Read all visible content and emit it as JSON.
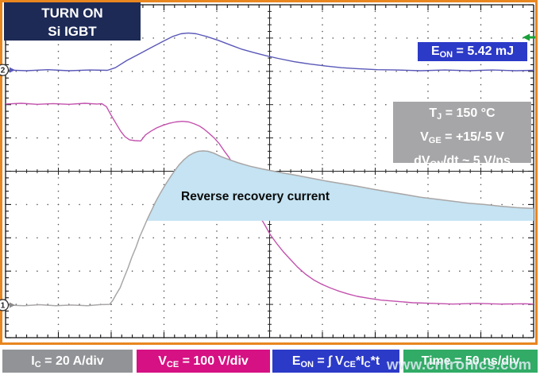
{
  "colors": {
    "navy": "#1d2a56",
    "royal_blue": "#2c3ac8",
    "magenta_box": "#d61183",
    "gray_box": "#919396",
    "cond_gray": "#a6a6a8",
    "green_box": "#31ab66",
    "orange_frame": "#e8861f",
    "shade_blue": "#c5e3f2",
    "eon_trace": "#5a58b8",
    "vce_trace": "#c352ae",
    "ic_trace": "#a9a6a6",
    "trigger_green": "#18a038"
  },
  "title_box": {
    "line1": "TURN ON",
    "line2": "Si IGBT"
  },
  "eon_badge": [
    {
      "t": "E"
    },
    {
      "s": "ON"
    },
    {
      "t": " = 5.42 mJ"
    }
  ],
  "conditions": {
    "line1": [
      {
        "t": "T"
      },
      {
        "s": "J"
      },
      {
        "t": " = 150 °C"
      }
    ],
    "line2": [
      {
        "t": "V"
      },
      {
        "s": "GE"
      },
      {
        "t": " = +15/-5 V"
      }
    ],
    "line3": [
      {
        "t": "dV"
      },
      {
        "s": "ON"
      },
      {
        "t": "/dt ~ 5 V/ns"
      }
    ]
  },
  "legend": {
    "ic": [
      {
        "t": "I"
      },
      {
        "s": "C"
      },
      {
        "t": " = 20 A/div"
      }
    ],
    "vce": [
      {
        "t": "V"
      },
      {
        "s": "CE"
      },
      {
        "t": " = 100 V/div"
      }
    ],
    "eon": [
      {
        "t": "E"
      },
      {
        "s": "ON"
      },
      {
        "t": " = ∫ V"
      },
      {
        "s": "CE"
      },
      {
        "t": "*I"
      },
      {
        "s": "C"
      },
      {
        "t": "*t"
      }
    ],
    "time": [
      {
        "t": "Time = 50 ns/div"
      }
    ]
  },
  "watermark": "www.cntronics.com",
  "chart_data": {
    "type": "line",
    "title": "TURN ON Si IGBT",
    "annotations": [
      "E_ON = 5.42 mJ",
      "T_J = 150 °C",
      "V_GE = +15/-5 V",
      "dV_ON/dt ~ 5 V/ns",
      "Reverse recovery current"
    ],
    "grid": {
      "x_divisions": 10,
      "y_divisions": 10,
      "style": "oscilloscope dotted graticule with ticked center axes and edge rulers"
    },
    "x_axis": {
      "scale_label": "Time = 50 ns/div",
      "range_div": [
        0,
        10
      ]
    },
    "y_axis": {
      "range_div": [
        0,
        10
      ],
      "note": "y in graticule divisions from top"
    },
    "channel_markers": [
      {
        "channel": "2",
        "y_div": 1.96
      },
      {
        "channel": "1",
        "y_div": 9.02
      }
    ],
    "trigger_marker": {
      "y_div": 0.98,
      "edge": "right"
    },
    "series": [
      {
        "name": "E_ON (CH2 math, ∫ V_CE*I_C*t)",
        "scale_label": "E_ON = 5.42 mJ total",
        "color_key": "eon_trace",
        "points": [
          [
            0,
            1.96
          ],
          [
            0.4,
            1.98
          ],
          [
            0.8,
            1.95
          ],
          [
            1.2,
            1.98
          ],
          [
            1.6,
            1.96
          ],
          [
            1.93,
            1.97
          ],
          [
            2.08,
            1.89
          ],
          [
            2.3,
            1.67
          ],
          [
            2.53,
            1.48
          ],
          [
            2.75,
            1.29
          ],
          [
            2.98,
            1.1
          ],
          [
            3.17,
            0.95
          ],
          [
            3.32,
            0.87
          ],
          [
            3.46,
            0.85
          ],
          [
            3.61,
            0.87
          ],
          [
            3.8,
            0.95
          ],
          [
            4.03,
            1.07
          ],
          [
            4.26,
            1.21
          ],
          [
            4.48,
            1.34
          ],
          [
            4.71,
            1.44
          ],
          [
            4.93,
            1.53
          ],
          [
            5.16,
            1.61
          ],
          [
            5.46,
            1.71
          ],
          [
            5.76,
            1.78
          ],
          [
            6.06,
            1.84
          ],
          [
            6.36,
            1.89
          ],
          [
            6.66,
            1.92
          ],
          [
            7.04,
            1.95
          ],
          [
            7.41,
            1.96
          ],
          [
            7.86,
            1.98
          ],
          [
            8.32,
            1.96
          ],
          [
            8.77,
            1.98
          ],
          [
            9.22,
            1.96
          ],
          [
            9.67,
            1.98
          ],
          [
            10,
            1.97
          ]
        ]
      },
      {
        "name": "V_CE",
        "scale_label": "100 V/div",
        "color_key": "vce_trace",
        "points": [
          [
            0,
            2.98
          ],
          [
            0.3,
            2.96
          ],
          [
            0.6,
            2.99
          ],
          [
            0.9,
            2.97
          ],
          [
            1.2,
            2.99
          ],
          [
            1.5,
            2.96
          ],
          [
            1.73,
            2.98
          ],
          [
            1.82,
            2.97
          ],
          [
            1.91,
            3.06
          ],
          [
            2.0,
            3.32
          ],
          [
            2.09,
            3.56
          ],
          [
            2.18,
            3.8
          ],
          [
            2.26,
            3.96
          ],
          [
            2.35,
            4.06
          ],
          [
            2.45,
            4.08
          ],
          [
            2.56,
            4.09
          ],
          [
            2.65,
            3.91
          ],
          [
            2.75,
            3.8
          ],
          [
            2.86,
            3.7
          ],
          [
            2.98,
            3.62
          ],
          [
            3.1,
            3.56
          ],
          [
            3.22,
            3.52
          ],
          [
            3.35,
            3.5
          ],
          [
            3.47,
            3.52
          ],
          [
            3.58,
            3.58
          ],
          [
            3.68,
            3.65
          ],
          [
            3.77,
            3.75
          ],
          [
            3.86,
            3.87
          ],
          [
            3.95,
            4.0
          ],
          [
            4.05,
            4.18
          ],
          [
            4.14,
            4.39
          ],
          [
            4.23,
            4.58
          ],
          [
            4.33,
            4.87
          ],
          [
            4.44,
            5.2
          ],
          [
            4.56,
            5.58
          ],
          [
            4.68,
            5.97
          ],
          [
            4.78,
            6.28
          ],
          [
            4.89,
            6.56
          ],
          [
            5.01,
            6.9
          ],
          [
            5.13,
            7.16
          ],
          [
            5.26,
            7.42
          ],
          [
            5.4,
            7.66
          ],
          [
            5.53,
            7.88
          ],
          [
            5.68,
            8.09
          ],
          [
            5.83,
            8.26
          ],
          [
            5.98,
            8.39
          ],
          [
            6.14,
            8.5
          ],
          [
            6.29,
            8.59
          ],
          [
            6.47,
            8.68
          ],
          [
            6.66,
            8.76
          ],
          [
            6.89,
            8.82
          ],
          [
            7.11,
            8.87
          ],
          [
            7.41,
            8.91
          ],
          [
            7.71,
            8.95
          ],
          [
            8.09,
            8.97
          ],
          [
            8.47,
            8.99
          ],
          [
            8.92,
            8.97
          ],
          [
            9.37,
            8.99
          ],
          [
            9.82,
            8.98
          ],
          [
            10,
            8.99
          ]
        ]
      },
      {
        "name": "I_C",
        "scale_label": "20 A/div",
        "color_key": "ic_trace",
        "points": [
          [
            0,
            9.02
          ],
          [
            0.35,
            9.04
          ],
          [
            0.65,
            9.01
          ],
          [
            0.95,
            9.04
          ],
          [
            1.25,
            9.02
          ],
          [
            1.55,
            9.04
          ],
          [
            1.77,
            9.01
          ],
          [
            1.97,
            9.0
          ],
          [
            2.03,
            8.88
          ],
          [
            2.09,
            8.71
          ],
          [
            2.17,
            8.5
          ],
          [
            2.24,
            8.21
          ],
          [
            2.32,
            7.9
          ],
          [
            2.39,
            7.59
          ],
          [
            2.47,
            7.28
          ],
          [
            2.54,
            6.97
          ],
          [
            2.62,
            6.68
          ],
          [
            2.69,
            6.42
          ],
          [
            2.77,
            6.16
          ],
          [
            2.84,
            5.92
          ],
          [
            2.93,
            5.66
          ],
          [
            3.02,
            5.42
          ],
          [
            3.11,
            5.2
          ],
          [
            3.2,
            4.99
          ],
          [
            3.29,
            4.8
          ],
          [
            3.38,
            4.65
          ],
          [
            3.47,
            4.53
          ],
          [
            3.56,
            4.45
          ],
          [
            3.65,
            4.4
          ],
          [
            3.74,
            4.39
          ],
          [
            3.83,
            4.4
          ],
          [
            3.95,
            4.46
          ],
          [
            4.08,
            4.56
          ],
          [
            4.23,
            4.65
          ],
          [
            4.41,
            4.75
          ],
          [
            4.63,
            4.85
          ],
          [
            4.86,
            4.93
          ],
          [
            5.08,
            5.0
          ],
          [
            5.31,
            5.07
          ],
          [
            5.53,
            5.13
          ],
          [
            5.76,
            5.2
          ],
          [
            6.06,
            5.29
          ],
          [
            6.36,
            5.37
          ],
          [
            6.66,
            5.45
          ],
          [
            6.96,
            5.54
          ],
          [
            7.26,
            5.62
          ],
          [
            7.56,
            5.7
          ],
          [
            7.86,
            5.78
          ],
          [
            8.17,
            5.84
          ],
          [
            8.47,
            5.9
          ],
          [
            8.77,
            5.96
          ],
          [
            9.07,
            6.0
          ],
          [
            9.37,
            6.05
          ],
          [
            9.67,
            6.09
          ],
          [
            9.89,
            6.11
          ],
          [
            10,
            6.12
          ]
        ]
      }
    ],
    "shade_region": {
      "label": "Reverse recovery current",
      "bounded_by_series": "I_C",
      "start_x_div": 2.675,
      "end_x_div": 10,
      "baseline_y_div": 6.49,
      "color_key": "shade_blue"
    }
  }
}
